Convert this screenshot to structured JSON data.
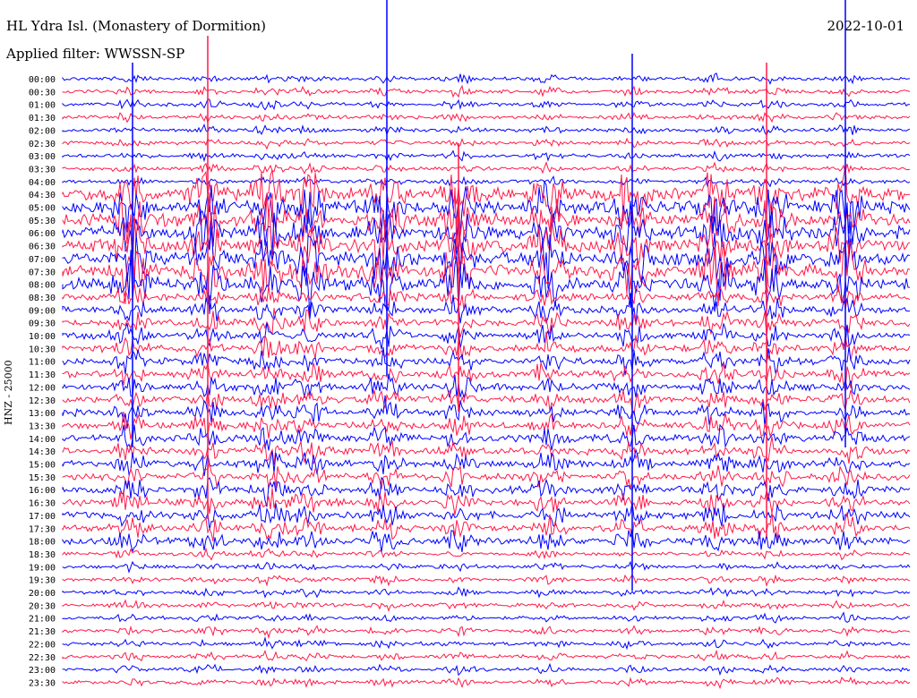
{
  "header": {
    "station": "HL Ydra Isl. (Monastery of Dormition)",
    "filter": "Applied filter: WWSSN-SP",
    "date": "2022-10-01",
    "component": "HNZ - 25000"
  },
  "colors": {
    "even": "#0000ff",
    "odd": "#ff1a4a"
  },
  "chart_data": {
    "type": "line",
    "title": "HL Ydra Isl. (Monastery of Dormition)",
    "subtitle": "Applied filter: WWSSN-SP",
    "date": "2022-10-01",
    "ylabel": "HNZ - 25000",
    "xlabel": "",
    "rows": [
      "00:00",
      "00:30",
      "01:00",
      "01:30",
      "02:00",
      "02:30",
      "03:00",
      "03:30",
      "04:00",
      "04:30",
      "05:00",
      "05:30",
      "06:00",
      "06:30",
      "07:00",
      "07:30",
      "08:00",
      "08:30",
      "09:00",
      "09:30",
      "10:00",
      "10:30",
      "11:00",
      "11:30",
      "12:00",
      "12:30",
      "13:00",
      "13:30",
      "14:00",
      "14:30",
      "15:00",
      "15:30",
      "16:00",
      "16:30",
      "17:00",
      "17:30",
      "18:00",
      "18:30",
      "19:00",
      "19:30",
      "20:00",
      "20:30",
      "21:00",
      "21:30",
      "22:00",
      "22:30",
      "23:00",
      "23:30"
    ],
    "grid": false,
    "legend": "none"
  }
}
